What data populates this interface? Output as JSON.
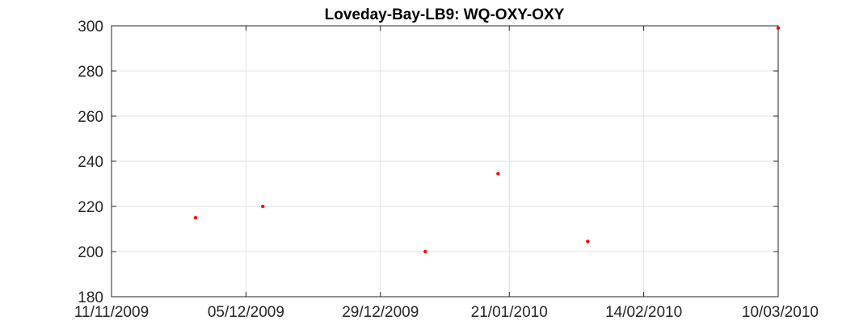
{
  "chart_data": {
    "type": "scatter",
    "title": "Loveday-Bay-LB9: WQ-OXY-OXY",
    "xlabel": "",
    "ylabel": "",
    "x_tick_labels": [
      "11/11/2009",
      "05/12/2009",
      "29/12/2009",
      "21/01/2010",
      "14/02/2010",
      "10/03/2010"
    ],
    "x_ticks": [
      "2009-11-11",
      "2009-12-05",
      "2009-12-29",
      "2010-01-21",
      "2010-02-14",
      "2010-03-10"
    ],
    "xlim": [
      "2009-11-11",
      "2010-03-10"
    ],
    "y_ticks": [
      180,
      200,
      220,
      240,
      260,
      280,
      300
    ],
    "ylim": [
      180,
      300
    ],
    "grid": true,
    "marker_color": "#ff0000",
    "points": [
      {
        "x": "2009-11-26",
        "y": 215
      },
      {
        "x": "2009-12-08",
        "y": 220
      },
      {
        "x": "2010-01-06",
        "y": 200
      },
      {
        "x": "2010-01-19",
        "y": 234.5
      },
      {
        "x": "2010-02-04",
        "y": 204.5
      },
      {
        "x": "2010-03-10",
        "y": 299
      }
    ]
  }
}
